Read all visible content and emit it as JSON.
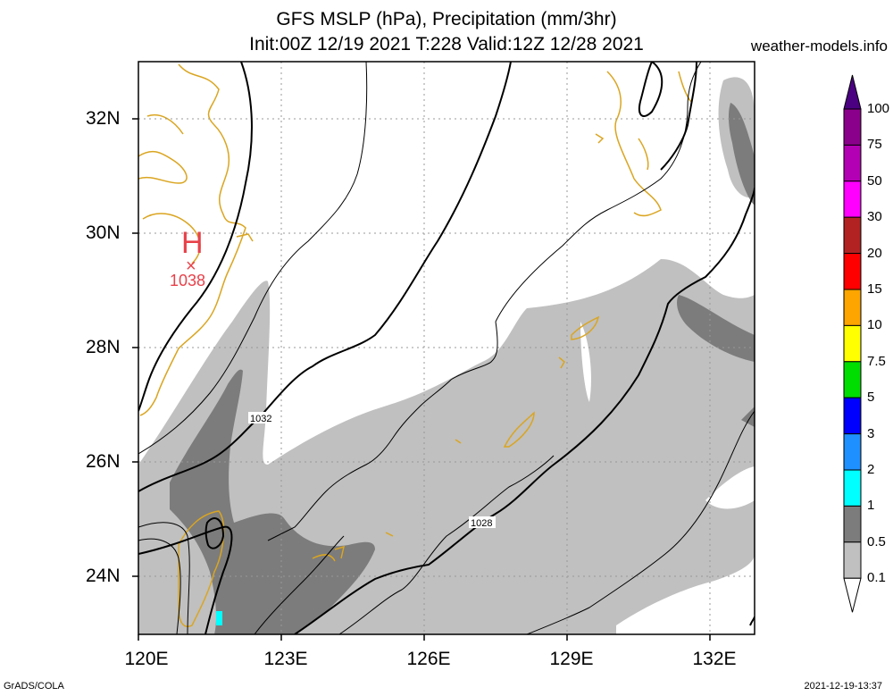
{
  "header": {
    "title_line1": "GFS MSLP (hPa), Precipitation (mm/3hr)",
    "title_line2": "Init:00Z 12/19 2021 T:228 Valid:12Z 12/28 2021",
    "site": "weather-models.info"
  },
  "map": {
    "lat_labels": [
      "32N",
      "30N",
      "28N",
      "26N",
      "24N"
    ],
    "lon_labels": [
      "120E",
      "123E",
      "126E",
      "129E",
      "132E"
    ],
    "high": {
      "symbol": "H",
      "marker": "×",
      "value": "1038"
    },
    "contour_labels": [
      "1032",
      "1028"
    ]
  },
  "colorbar": {
    "labels": [
      "100",
      "75",
      "50",
      "30",
      "20",
      "15",
      "10",
      "7.5",
      "5",
      "3",
      "2",
      "1",
      "0.5",
      "0.1"
    ],
    "colors": [
      "#4b0082",
      "#8b008b",
      "#b400b4",
      "#ff00ff",
      "#b22222",
      "#ff0000",
      "#ffa500",
      "#ffff00",
      "#00dd00",
      "#0000ff",
      "#1e90ff",
      "#00ffff",
      "#7c7c7c",
      "#c0c0c0"
    ]
  },
  "footer": {
    "left": "GrADS/COLA",
    "right": "2021-12-19-13:37"
  }
}
